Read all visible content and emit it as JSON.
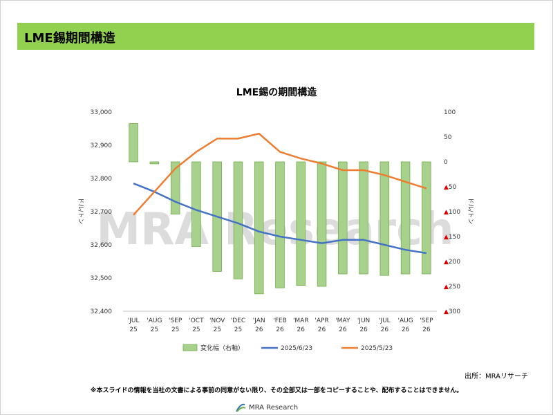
{
  "header": {
    "title": "LME錫期間構造"
  },
  "source": "出所：MRAリサーチ",
  "notice": "※本スライドの情報を当社の文書による事前の同意がない限り、その全部又は一部をコピーすることや、配布することはできません。",
  "watermark": "MRA Research",
  "logo": {
    "text": "MRA Research"
  },
  "chart_data": {
    "type": "bar+line",
    "title": "LME錫の期間構造",
    "categories": [
      "'JUL\n25",
      "'AUG\n25",
      "'SEP\n25",
      "'OCT\n25",
      "'NOV\n25",
      "'DEC\n25",
      "'JAN\n26",
      "'FEB\n26",
      "'MAR\n26",
      "'APR\n26",
      "'MAY\n26",
      "'JUN\n26",
      "'JUL\n26",
      "'AUG\n26",
      "'SEP\n26"
    ],
    "ylabel_left": "ドル/トン",
    "ylabel_right": "ドル/トン",
    "ylim_left": [
      32400,
      33000
    ],
    "yticks_left": [
      "32,400",
      "32,500",
      "32,600",
      "32,700",
      "32,800",
      "32,900",
      "33,000"
    ],
    "ylim_right": [
      -300,
      100
    ],
    "yticks_right": [
      {
        "v": 100,
        "label": "100",
        "neg": false
      },
      {
        "v": 50,
        "label": "50",
        "neg": false
      },
      {
        "v": 0,
        "label": "0",
        "neg": false
      },
      {
        "v": -50,
        "label": "▲50",
        "neg": true
      },
      {
        "v": -100,
        "label": "▲100",
        "neg": true
      },
      {
        "v": -150,
        "label": "▲150",
        "neg": true
      },
      {
        "v": -200,
        "label": "▲200",
        "neg": true
      },
      {
        "v": -250,
        "label": "▲250",
        "neg": true
      },
      {
        "v": -300,
        "label": "▲300",
        "neg": true
      }
    ],
    "bars": {
      "name": "変化幅（右軸）",
      "axis": "right",
      "color": "#a9d18e",
      "edge": "#70ad47",
      "values": [
        77,
        -4,
        -105,
        -170,
        -220,
        -235,
        -265,
        -253,
        -248,
        -250,
        -225,
        -225,
        -228,
        -225,
        -225
      ]
    },
    "series": [
      {
        "name": "2025/6/23",
        "axis": "left",
        "color": "#4472c4",
        "values": [
          32785,
          32760,
          32730,
          32705,
          32685,
          32665,
          32640,
          32625,
          32615,
          32605,
          32615,
          32615,
          32600,
          32585,
          32575
        ]
      },
      {
        "name": "2025/5/23",
        "axis": "left",
        "color": "#ed7d31",
        "values": [
          32690,
          32760,
          32830,
          32880,
          32920,
          32920,
          32935,
          32880,
          32860,
          32845,
          32825,
          32825,
          32810,
          32790,
          32770
        ]
      }
    ],
    "legend": "bottom",
    "grid": false
  }
}
